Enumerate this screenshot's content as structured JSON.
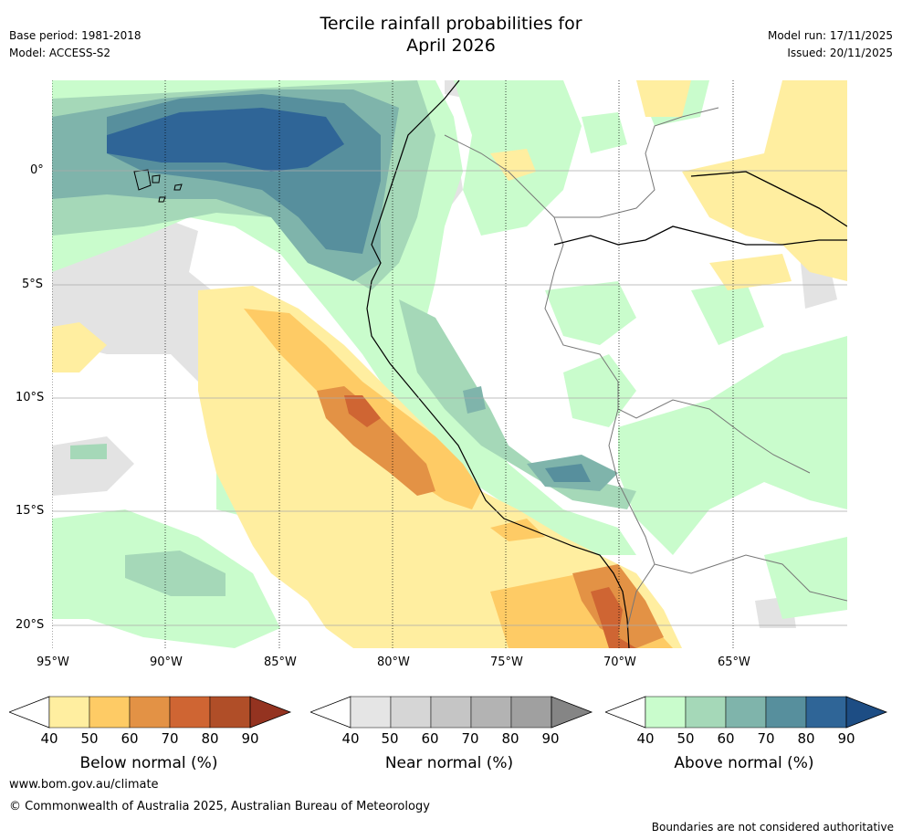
{
  "header": {
    "title_line1": "Tercile rainfall probabilities for",
    "title_line2": "April 2026",
    "base_period": "Base period: 1981-2018",
    "model": "Model: ACCESS-S2",
    "model_run": "Model run: 17/11/2025",
    "issued": "Issued: 20/11/2025"
  },
  "map": {
    "lat_labels": [
      "0°",
      "5°S",
      "10°S",
      "15°S",
      "20°S"
    ],
    "lon_labels": [
      "95°W",
      "90°W",
      "85°W",
      "80°W",
      "75°W",
      "70°W",
      "65°W"
    ]
  },
  "legends": [
    {
      "title": "Below normal (%)",
      "ticks": [
        "40",
        "50",
        "60",
        "70",
        "80",
        "90"
      ],
      "colors": [
        "#ffeea0",
        "#fecb65",
        "#e39245",
        "#cf6533",
        "#b04e28",
        "#943320"
      ]
    },
    {
      "title": "Near normal (%)",
      "ticks": [
        "40",
        "50",
        "60",
        "70",
        "80",
        "90"
      ],
      "colors": [
        "#e5e5e5",
        "#d6d6d6",
        "#c5c5c5",
        "#b3b3b3",
        "#a0a0a0",
        "#858585"
      ]
    },
    {
      "title": "Above normal (%)",
      "ticks": [
        "40",
        "50",
        "60",
        "70",
        "80",
        "90"
      ],
      "colors": [
        "#c9fccc",
        "#a5d8b8",
        "#7fb4ab",
        "#578f9d",
        "#2f6597",
        "#1d4d84"
      ]
    }
  ],
  "footer": {
    "url": "www.bom.gov.au/climate",
    "copyright": "© Commonwealth of Australia 2025, Australian Bureau of Meteorology",
    "disclaimer": "Boundaries are not considered authoritative"
  }
}
